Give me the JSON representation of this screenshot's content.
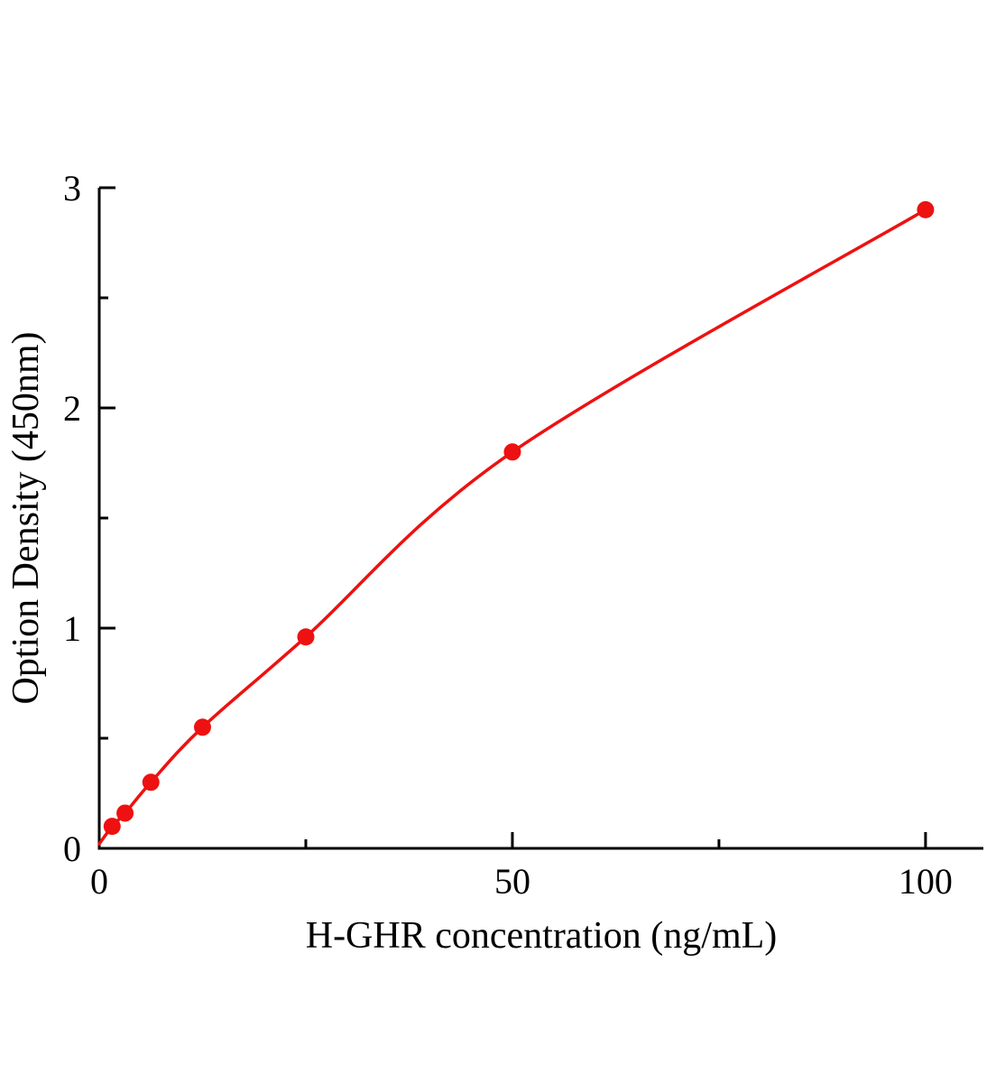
{
  "chart_data": {
    "type": "scatter",
    "title": "",
    "xlabel": "H-GHR concentration (ng/mL)",
    "ylabel": "Option Density (450nm)",
    "x": [
      1.56,
      3.12,
      6.25,
      12.5,
      25,
      50,
      100
    ],
    "y": [
      0.1,
      0.16,
      0.3,
      0.55,
      0.96,
      1.8,
      2.9
    ],
    "curve_start": [
      0,
      0.02
    ],
    "xlim": [
      0,
      107
    ],
    "ylim": [
      0,
      3
    ],
    "x_major_ticks": [
      0,
      50,
      100
    ],
    "x_minor_ticks": [
      25,
      75
    ],
    "y_major_ticks": [
      0,
      1,
      2,
      3
    ],
    "y_minor_ticks": [
      0.5,
      1.5,
      2.5
    ],
    "grid": false,
    "legend": "none",
    "marker_color": "#ee1111",
    "line_color": "#ee1111",
    "axis_color": "#000000",
    "background_color": "#ffffff"
  }
}
